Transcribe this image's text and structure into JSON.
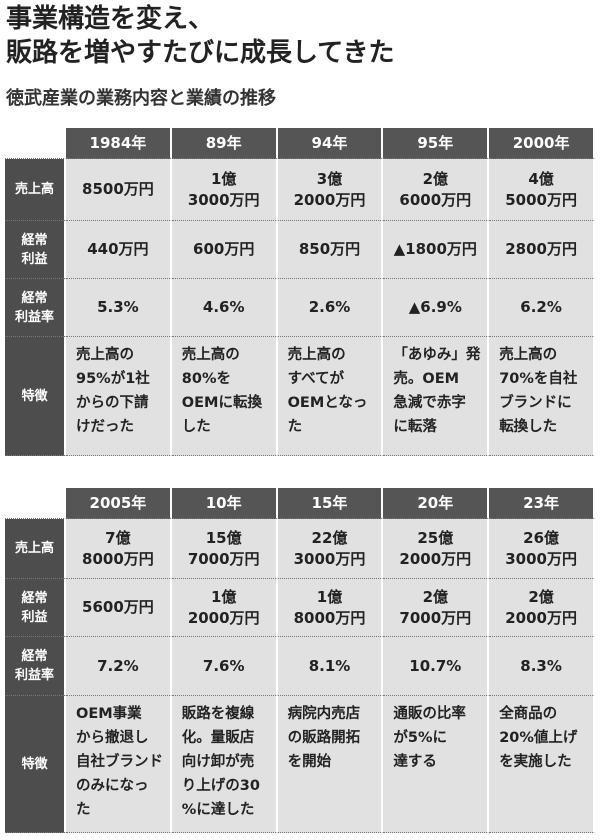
{
  "title_line1": "事業構造を変え、",
  "title_line2": "販路を増やすたびに成長してきた",
  "subtitle": "徳武産業の業務内容と業績の推移",
  "row_labels": [
    "売上高",
    "経常\n利益",
    "経常\n利益率",
    "特徴"
  ],
  "colors": {
    "header": "#555555",
    "label": "#4d4d4d",
    "cell": "#e1e1e1"
  },
  "tables": [
    {
      "years": [
        "1984年",
        "89年",
        "94年",
        "95年",
        "2000年"
      ],
      "sales": [
        "8500万円",
        "1億\n3000万円",
        "3億\n2000万円",
        "2億\n6000万円",
        "4億\n5000万円"
      ],
      "profit": [
        "440万円",
        "600万円",
        "850万円",
        "▲1800万円",
        "2800万円"
      ],
      "margin": [
        "5.3%",
        "4.6%",
        "2.6%",
        "▲6.9%",
        "6.2%"
      ],
      "features": [
        "売上高の\n95%が1社\nからの下請\nけだった",
        "売上高の\n80%を\nOEMに転換\nした",
        "売上高の\nすべてが\nOEMとなっ\nた",
        "「あゆみ」発\n売。OEM\n急減で赤字\nに転落",
        "売上高の\n70%を自社\nブランドに\n転換した"
      ]
    },
    {
      "years": [
        "2005年",
        "10年",
        "15年",
        "20年",
        "23年"
      ],
      "sales": [
        "7億\n8000万円",
        "15億\n7000万円",
        "22億\n3000万円",
        "25億\n2000万円",
        "26億\n3000万円"
      ],
      "profit": [
        "5600万円",
        "1億\n2000万円",
        "1億\n8000万円",
        "2億\n7000万円",
        "2億\n2000万円"
      ],
      "margin": [
        "7.2%",
        "7.6%",
        "8.1%",
        "10.7%",
        "8.3%"
      ],
      "features": [
        "OEM事業\nから撤退し\n自社ブランド\nのみになっ\nた",
        "販路を複線\n化。量販店\n向け卸が売\nり上げの30\n%に達した",
        "病院内売店\nの販路開拓\nを開始",
        "通販の比率\nが5%に\n達する",
        "全商品の\n20%値上げ\nを実施した"
      ]
    }
  ]
}
